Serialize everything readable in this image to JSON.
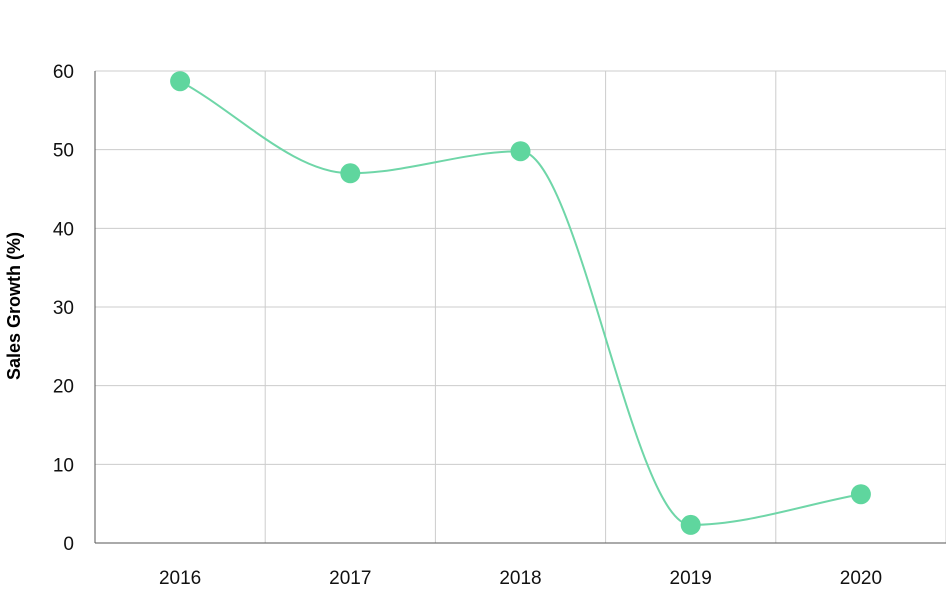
{
  "chart_data": {
    "type": "line",
    "title": "",
    "xlabel": "",
    "ylabel": "Sales Growth (%)",
    "categories": [
      "2016",
      "2017",
      "2018",
      "2019",
      "2020"
    ],
    "series": [
      {
        "values": [
          58.7,
          47.0,
          49.8,
          2.3,
          6.2
        ]
      }
    ],
    "ylim": [
      0,
      60
    ],
    "yticks": [
      "0",
      "10",
      "20",
      "30",
      "40",
      "50",
      "60"
    ],
    "grid": true,
    "legend": "none",
    "smooth": true,
    "colors": {
      "line": "#6fd6a8",
      "marker": "#5fd69e",
      "grid": "#cccccc",
      "axis": "#555555"
    }
  }
}
